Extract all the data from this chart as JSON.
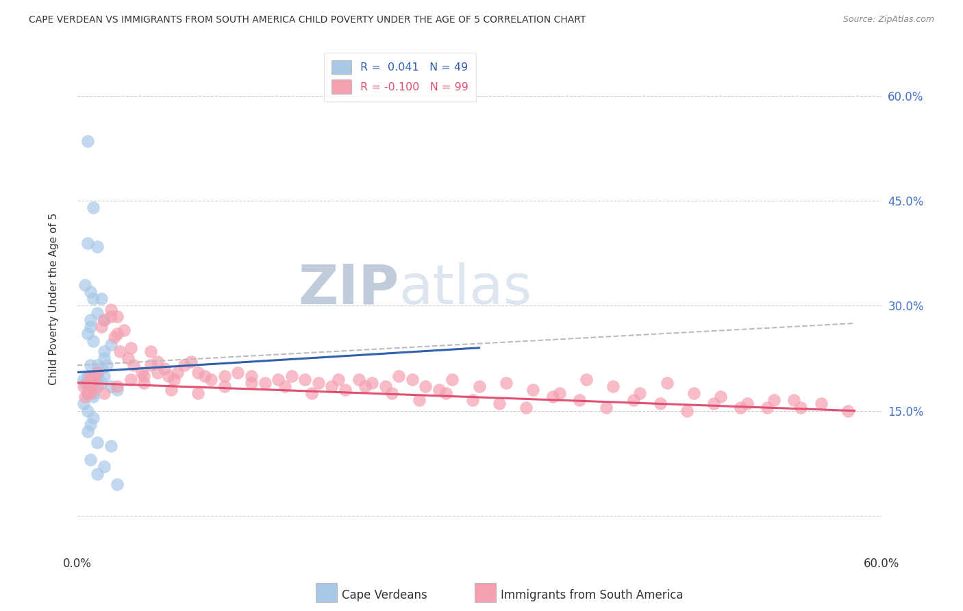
{
  "title": "CAPE VERDEAN VS IMMIGRANTS FROM SOUTH AMERICA CHILD POVERTY UNDER THE AGE OF 5 CORRELATION CHART",
  "source": "Source: ZipAtlas.com",
  "ylabel": "Child Poverty Under the Age of 5",
  "yticks": [
    0.0,
    0.15,
    0.3,
    0.45,
    0.6
  ],
  "ytick_labels": [
    "",
    "15.0%",
    "30.0%",
    "45.0%",
    "60.0%"
  ],
  "xlim": [
    0.0,
    0.6
  ],
  "ylim": [
    -0.05,
    0.67
  ],
  "legend_blue_label": "R =  0.041   N = 49",
  "legend_pink_label": "R = -0.100   N = 99",
  "blue_color": "#a8c8e8",
  "pink_color": "#f4a0b0",
  "blue_line_color": "#3060b0",
  "pink_line_color": "#e05070",
  "dashed_line_color": "#bbbbbb",
  "watermark_zip_color": "#c8d4e8",
  "watermark_atlas_color": "#d8e4f0",
  "background_color": "#ffffff",
  "blue_scatter_x": [
    0.005,
    0.008,
    0.01,
    0.012,
    0.015,
    0.008,
    0.006,
    0.01,
    0.012,
    0.01,
    0.008,
    0.012,
    0.015,
    0.018,
    0.02,
    0.01,
    0.015,
    0.008,
    0.006,
    0.01,
    0.008,
    0.012,
    0.015,
    0.01,
    0.012,
    0.008,
    0.005,
    0.015,
    0.01,
    0.02,
    0.025,
    0.008,
    0.012,
    0.01,
    0.008,
    0.018,
    0.02,
    0.022,
    0.015,
    0.025,
    0.03,
    0.012,
    0.018,
    0.02,
    0.025,
    0.01,
    0.015,
    0.03,
    0.02
  ],
  "blue_scatter_y": [
    0.195,
    0.535,
    0.185,
    0.44,
    0.385,
    0.39,
    0.33,
    0.28,
    0.31,
    0.27,
    0.26,
    0.25,
    0.29,
    0.31,
    0.28,
    0.32,
    0.215,
    0.2,
    0.19,
    0.18,
    0.175,
    0.17,
    0.2,
    0.215,
    0.185,
    0.175,
    0.16,
    0.205,
    0.195,
    0.235,
    0.245,
    0.15,
    0.14,
    0.13,
    0.12,
    0.21,
    0.225,
    0.215,
    0.105,
    0.1,
    0.045,
    0.175,
    0.19,
    0.2,
    0.185,
    0.08,
    0.06,
    0.18,
    0.07
  ],
  "pink_scatter_x": [
    0.005,
    0.008,
    0.01,
    0.012,
    0.015,
    0.008,
    0.006,
    0.01,
    0.015,
    0.02,
    0.025,
    0.03,
    0.012,
    0.018,
    0.025,
    0.03,
    0.035,
    0.04,
    0.028,
    0.032,
    0.038,
    0.042,
    0.048,
    0.05,
    0.055,
    0.06,
    0.055,
    0.06,
    0.065,
    0.068,
    0.072,
    0.075,
    0.08,
    0.085,
    0.09,
    0.095,
    0.1,
    0.11,
    0.12,
    0.13,
    0.14,
    0.15,
    0.16,
    0.17,
    0.18,
    0.19,
    0.2,
    0.21,
    0.22,
    0.23,
    0.24,
    0.25,
    0.26,
    0.27,
    0.28,
    0.3,
    0.32,
    0.34,
    0.36,
    0.38,
    0.4,
    0.42,
    0.44,
    0.46,
    0.48,
    0.5,
    0.52,
    0.54,
    0.01,
    0.02,
    0.03,
    0.04,
    0.05,
    0.07,
    0.09,
    0.11,
    0.13,
    0.155,
    0.175,
    0.195,
    0.215,
    0.235,
    0.255,
    0.275,
    0.295,
    0.315,
    0.335,
    0.355,
    0.375,
    0.395,
    0.415,
    0.435,
    0.455,
    0.475,
    0.495,
    0.515,
    0.535,
    0.555,
    0.575
  ],
  "pink_scatter_y": [
    0.185,
    0.19,
    0.2,
    0.195,
    0.185,
    0.175,
    0.17,
    0.18,
    0.205,
    0.28,
    0.295,
    0.285,
    0.2,
    0.27,
    0.285,
    0.26,
    0.265,
    0.24,
    0.255,
    0.235,
    0.225,
    0.215,
    0.205,
    0.2,
    0.235,
    0.22,
    0.215,
    0.205,
    0.21,
    0.2,
    0.195,
    0.205,
    0.215,
    0.22,
    0.205,
    0.2,
    0.195,
    0.185,
    0.205,
    0.2,
    0.19,
    0.195,
    0.2,
    0.195,
    0.19,
    0.185,
    0.18,
    0.195,
    0.19,
    0.185,
    0.2,
    0.195,
    0.185,
    0.18,
    0.195,
    0.185,
    0.19,
    0.18,
    0.175,
    0.195,
    0.185,
    0.175,
    0.19,
    0.175,
    0.17,
    0.16,
    0.165,
    0.155,
    0.175,
    0.175,
    0.185,
    0.195,
    0.19,
    0.18,
    0.175,
    0.2,
    0.19,
    0.185,
    0.175,
    0.195,
    0.185,
    0.175,
    0.165,
    0.175,
    0.165,
    0.16,
    0.155,
    0.17,
    0.165,
    0.155,
    0.165,
    0.16,
    0.15,
    0.16,
    0.155,
    0.155,
    0.165,
    0.16,
    0.15
  ],
  "blue_trend_x": [
    0.0,
    0.3
  ],
  "blue_trend_y": [
    0.205,
    0.24
  ],
  "pink_trend_x": [
    0.0,
    0.58
  ],
  "pink_trend_y": [
    0.19,
    0.15
  ],
  "dash_trend_x": [
    0.0,
    0.58
  ],
  "dash_trend_y": [
    0.215,
    0.275
  ]
}
